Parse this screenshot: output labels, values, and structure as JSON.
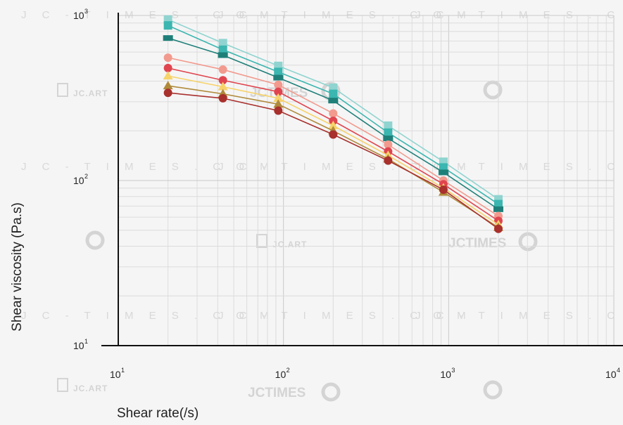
{
  "watermark": {
    "times": "J C - T I M E S . C O M",
    "art": "JC.ART",
    "brand": "JCTIMES"
  },
  "chart_data": {
    "type": "line",
    "xlabel": "Shear rate(/s)",
    "ylabel": "Shear viscosity (Pa.s)",
    "xscale": "log",
    "yscale": "log",
    "xlim": [
      10,
      10000
    ],
    "ylim": [
      10,
      1000
    ],
    "grid": true,
    "x_ticks": [
      {
        "base": "10",
        "exp": "1"
      },
      {
        "base": "10",
        "exp": "2"
      },
      {
        "base": "10",
        "exp": "3"
      },
      {
        "base": "10",
        "exp": "4"
      }
    ],
    "y_ticks": [
      {
        "base": "10",
        "exp": "1"
      },
      {
        "base": "10",
        "exp": "2"
      },
      {
        "base": "10",
        "exp": "3"
      }
    ],
    "x": [
      20,
      43,
      93,
      200,
      430,
      930,
      2000
    ],
    "series": [
      {
        "color": "#8fd4d0",
        "marker": "square",
        "values": [
          945,
          680,
          495,
          365,
          215,
          130,
          77
        ]
      },
      {
        "color": "#3bb6b0",
        "marker": "square",
        "values": [
          870,
          620,
          455,
          335,
          195,
          120,
          72
        ]
      },
      {
        "color": "#1e7f79",
        "marker": "dash",
        "values": [
          730,
          575,
          420,
          305,
          180,
          112,
          67
        ]
      },
      {
        "color": "#f29a8e",
        "marker": "circle",
        "values": [
          555,
          470,
          380,
          255,
          165,
          100,
          61
        ]
      },
      {
        "color": "#e0454f",
        "marker": "circle",
        "values": [
          480,
          405,
          345,
          230,
          150,
          95,
          57
        ]
      },
      {
        "color": "#f7d36b",
        "marker": "triangle",
        "values": [
          430,
          370,
          315,
          215,
          142,
          90,
          54
        ]
      },
      {
        "color": "#b08a3a",
        "marker": "triangle",
        "values": [
          375,
          335,
          290,
          200,
          135,
          85,
          52
        ]
      },
      {
        "color": "#a8302d",
        "marker": "circle",
        "values": [
          340,
          315,
          265,
          190,
          132,
          88,
          51
        ]
      }
    ]
  }
}
